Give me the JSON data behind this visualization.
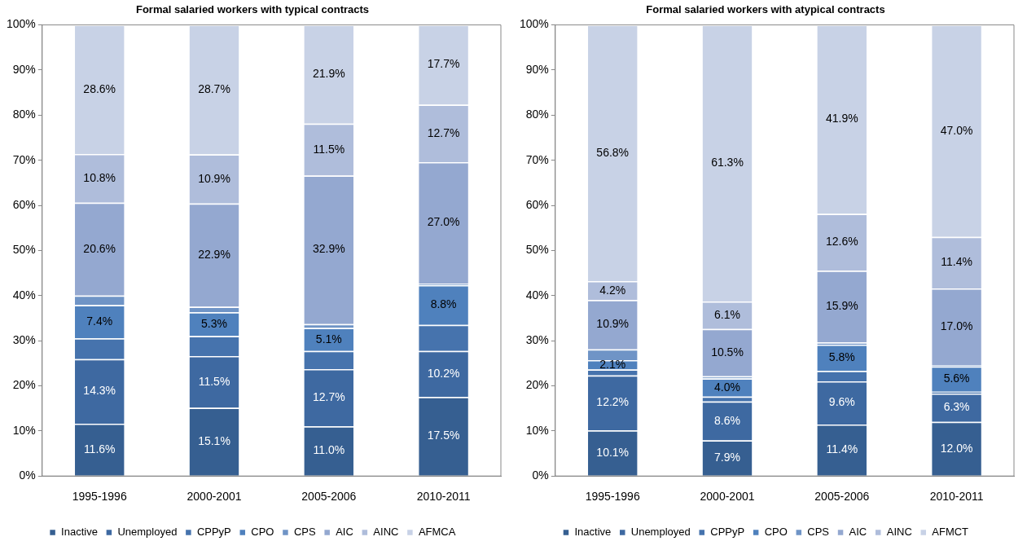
{
  "chart_data": [
    {
      "type": "bar",
      "stacked": true,
      "title": "Formal salaried workers with typical contracts",
      "categories": [
        "1995-1996",
        "2000-2001",
        "2005-2006",
        "2010-2011"
      ],
      "ylim": [
        0,
        100
      ],
      "yticks": [
        {
          "value": 0,
          "label": "0%"
        },
        {
          "value": 10,
          "label": "10%"
        },
        {
          "value": 20,
          "label": "20%"
        },
        {
          "value": 30,
          "label": "30%"
        },
        {
          "value": 40,
          "label": "40%"
        },
        {
          "value": 50,
          "label": "50%"
        },
        {
          "value": 60,
          "label": "60%"
        },
        {
          "value": 70,
          "label": "70%"
        },
        {
          "value": 80,
          "label": "80%"
        },
        {
          "value": 90,
          "label": "90%"
        },
        {
          "value": 100,
          "label": "100%"
        }
      ],
      "grid": false,
      "legend": "bottom",
      "series": [
        {
          "name": "Inactive",
          "color": "#365f91",
          "values": [
            11.6,
            15.1,
            11.0,
            17.5
          ],
          "value_labels": [
            "11.6%",
            "15.1%",
            "11.0%",
            "17.5%"
          ]
        },
        {
          "name": "Unemployed",
          "color": "#3e69a1",
          "values": [
            14.3,
            11.5,
            12.7,
            10.2
          ],
          "value_labels": [
            "14.3%",
            "11.5%",
            "12.7%",
            "10.2%"
          ]
        },
        {
          "name": "CPPyP",
          "color": "#4673ad",
          "values": [
            4.6,
            4.4,
            4.0,
            5.8
          ],
          "value_labels": [
            null,
            null,
            null,
            null
          ]
        },
        {
          "name": "CPO",
          "color": "#4f81bd",
          "values": [
            7.4,
            5.3,
            5.1,
            8.8
          ],
          "value_labels": [
            "7.4%",
            "5.3%",
            "5.1%",
            "8.8%"
          ]
        },
        {
          "name": "CPS",
          "color": "#6f94c6",
          "values": [
            2.1,
            1.2,
            0.9,
            0.3
          ],
          "value_labels": [
            null,
            null,
            null,
            null
          ]
        },
        {
          "name": "AIC",
          "color": "#94a8d0",
          "values": [
            20.6,
            22.9,
            32.9,
            27.0
          ],
          "value_labels": [
            "20.6%",
            "22.9%",
            "32.9%",
            "27.0%"
          ]
        },
        {
          "name": "AINC",
          "color": "#afbddb",
          "values": [
            10.8,
            10.9,
            11.5,
            12.7
          ],
          "value_labels": [
            "10.8%",
            "10.9%",
            "11.5%",
            "12.7%"
          ]
        },
        {
          "name": "AFMCA",
          "color": "#c8d2e6",
          "values": [
            28.6,
            28.7,
            21.9,
            17.7
          ],
          "value_labels": [
            "28.6%",
            "28.7%",
            "21.9%",
            "17.7%"
          ]
        }
      ]
    },
    {
      "type": "bar",
      "stacked": true,
      "title": "Formal salaried workers with atypical contracts",
      "categories": [
        "1995-1996",
        "2000-2001",
        "2005-2006",
        "2010-2011"
      ],
      "ylim": [
        0,
        100
      ],
      "yticks": [
        {
          "value": 0,
          "label": "0%"
        },
        {
          "value": 10,
          "label": "10%"
        },
        {
          "value": 20,
          "label": "20%"
        },
        {
          "value": 30,
          "label": "30%"
        },
        {
          "value": 40,
          "label": "40%"
        },
        {
          "value": 50,
          "label": "50%"
        },
        {
          "value": 60,
          "label": "60%"
        },
        {
          "value": 70,
          "label": "70%"
        },
        {
          "value": 80,
          "label": "80%"
        },
        {
          "value": 90,
          "label": "90%"
        },
        {
          "value": 100,
          "label": "100%"
        }
      ],
      "grid": false,
      "legend": "bottom",
      "series": [
        {
          "name": "Inactive",
          "color": "#365f91",
          "values": [
            10.1,
            7.9,
            11.4,
            12.0
          ],
          "value_labels": [
            "10.1%",
            "7.9%",
            "11.4%",
            "12.0%"
          ]
        },
        {
          "name": "Unemployed",
          "color": "#3e69a1",
          "values": [
            12.2,
            8.6,
            9.6,
            6.3
          ],
          "value_labels": [
            "12.2%",
            "8.6%",
            "9.6%",
            "6.3%"
          ]
        },
        {
          "name": "CPPyP",
          "color": "#4673ad",
          "values": [
            1.3,
            1.1,
            2.3,
            0.4
          ],
          "value_labels": [
            null,
            null,
            null,
            null
          ]
        },
        {
          "name": "CPO",
          "color": "#4f81bd",
          "values": [
            2.1,
            4.0,
            5.8,
            5.6
          ],
          "value_labels": [
            "2.1%",
            "4.0%",
            "5.8%",
            "5.6%"
          ]
        },
        {
          "name": "CPS",
          "color": "#6f94c6",
          "values": [
            2.4,
            0.5,
            0.5,
            0.3
          ],
          "value_labels": [
            null,
            null,
            null,
            null
          ]
        },
        {
          "name": "AIC",
          "color": "#94a8d0",
          "values": [
            10.9,
            10.5,
            15.9,
            17.0
          ],
          "value_labels": [
            "10.9%",
            "10.5%",
            "15.9%",
            "17.0%"
          ]
        },
        {
          "name": "AINC",
          "color": "#afbddb",
          "values": [
            4.2,
            6.1,
            12.6,
            11.4
          ],
          "value_labels": [
            "4.2%",
            "6.1%",
            "12.6%",
            "11.4%"
          ]
        },
        {
          "name": "AFMCT",
          "color": "#c8d2e6",
          "values": [
            56.8,
            61.3,
            41.9,
            47.0
          ],
          "value_labels": [
            "56.8%",
            "61.3%",
            "41.9%",
            "47.0%"
          ]
        }
      ]
    }
  ]
}
